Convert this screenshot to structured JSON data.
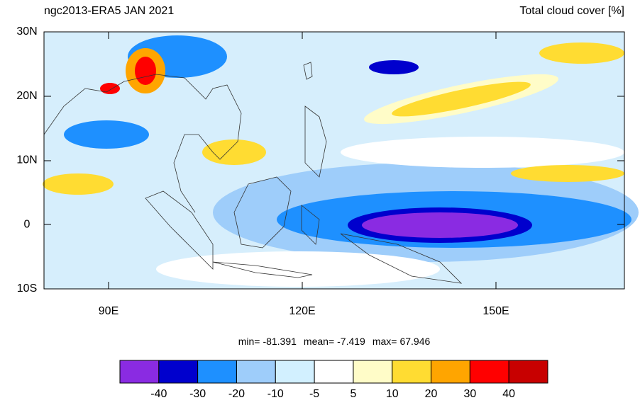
{
  "header": {
    "left_title": "ngc2013-ERA5 JAN 2021",
    "right_title": "Total cloud cover [%]"
  },
  "axes": {
    "lat_labels": [
      "30N",
      "20N",
      "10N",
      "0",
      "10S"
    ],
    "lon_labels": [
      "90E",
      "120E",
      "150E"
    ]
  },
  "stats": [
    {
      "label": "min=",
      "value": -81.391
    },
    {
      "label": "mean=",
      "value": -7.419
    },
    {
      "label": "max=",
      "value": 67.946
    }
  ],
  "colorbar": {
    "levels": [
      -40,
      -30,
      -20,
      -10,
      -5,
      5,
      10,
      20,
      30,
      40
    ],
    "colors": [
      "#8a2be2",
      "#0000cd",
      "#1e90ff",
      "#9ecdfa",
      "#d2f0ff",
      "#ffffff",
      "#fffcc8",
      "#ffdc32",
      "#ffa500",
      "#ff0000",
      "#c80000"
    ]
  }
}
